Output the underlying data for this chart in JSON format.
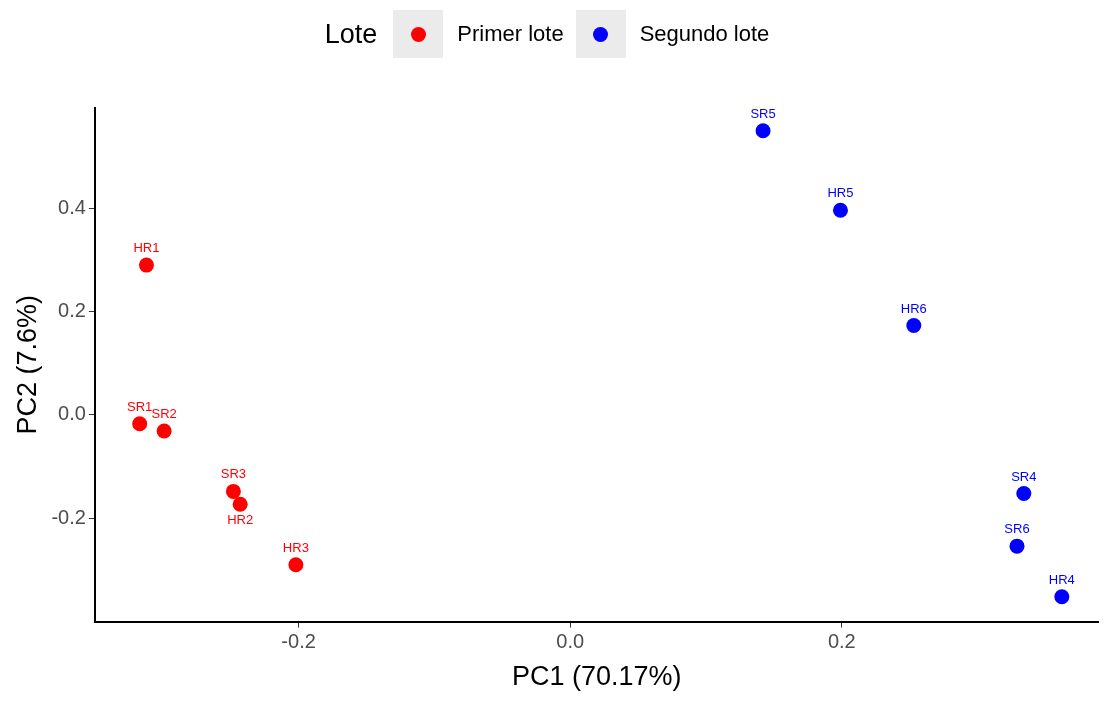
{
  "chart_data": {
    "type": "scatter",
    "xlabel": "PC1 (70.17%)",
    "ylabel": "PC2 (7.6%)",
    "legend_title": "Lote",
    "legend": "top",
    "grid": false,
    "marker": "circle",
    "xlim": [
      -0.35,
      0.389
    ],
    "xticks": [
      -0.2,
      {
        "value": 0,
        "label": "0.0"
      },
      0.2
    ],
    "ylim": [
      -0.4,
      0.594
    ],
    "yticks": [
      -0.2,
      {
        "value": 0,
        "label": "0.0"
      },
      0.2,
      0.4
    ],
    "series": [
      {
        "name": "Primer lote",
        "color": "#ff0000",
        "x": [
          -0.312,
          -0.317,
          -0.299,
          -0.248,
          -0.243,
          -0.202
        ],
        "values": [
          0.29,
          -0.017,
          -0.031,
          -0.148,
          -0.173,
          -0.29
        ]
      },
      {
        "name": "Segundo lote",
        "color": "#0000ff",
        "x": [
          0.142,
          0.199,
          0.253,
          0.334,
          0.329,
          0.362
        ],
        "values": [
          0.55,
          0.396,
          0.173,
          -0.152,
          -0.254,
          -0.352
        ]
      }
    ],
    "annotations": [
      {
        "text": "HR1",
        "x": -0.312,
        "y": 0.29
      },
      {
        "text": "SR1",
        "x": -0.317,
        "y": -0.017
      },
      {
        "text": "SR2",
        "x": -0.299,
        "y": -0.031
      },
      {
        "text": "SR3",
        "x": -0.248,
        "y": -0.148
      },
      {
        "text": "HR2",
        "x": -0.243,
        "y": -0.173
      },
      {
        "text": "HR3",
        "x": -0.202,
        "y": -0.29
      },
      {
        "text": "SR5",
        "x": 0.142,
        "y": 0.55
      },
      {
        "text": "HR5",
        "x": 0.199,
        "y": 0.396
      },
      {
        "text": "HR6",
        "x": 0.253,
        "y": 0.173
      },
      {
        "text": "SR4",
        "x": 0.334,
        "y": -0.152
      },
      {
        "text": "SR6",
        "x": 0.329,
        "y": -0.254
      },
      {
        "text": "HR4",
        "x": 0.362,
        "y": -0.352
      }
    ]
  }
}
